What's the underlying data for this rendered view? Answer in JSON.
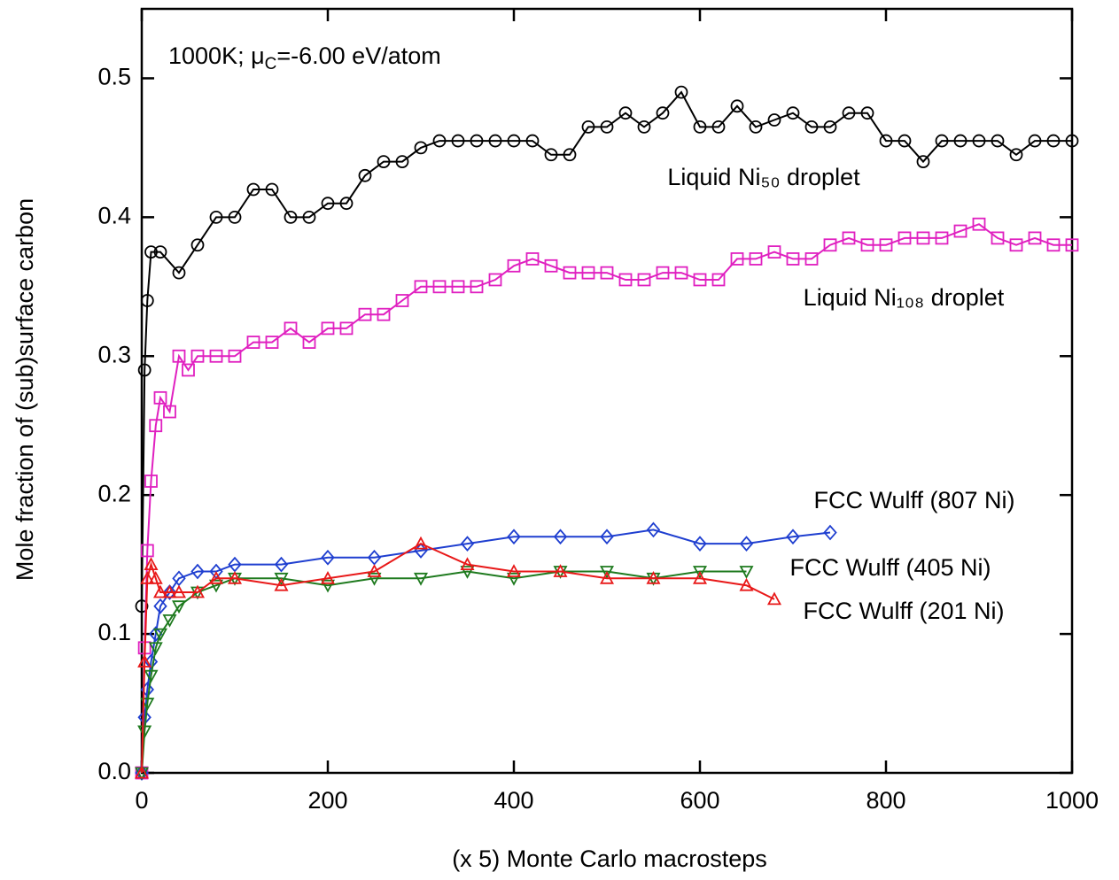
{
  "chart_data": {
    "type": "line",
    "annotation": [
      "1000K; μ",
      "C",
      "=-6.00 eV/atom"
    ],
    "xlabel": "(x 5) Monte Carlo macrosteps",
    "ylabel": "Mole fraction of (sub)surface carbon",
    "xlim": [
      0,
      1000
    ],
    "ylim": [
      0,
      0.55
    ],
    "xticks": [
      0,
      200,
      400,
      600,
      800,
      1000
    ],
    "yticks": [
      {
        "value": 0,
        "label": "0.0"
      },
      0.1,
      0.2,
      0.3,
      0.4,
      0.5
    ],
    "series": [
      {
        "name": "Liquid Ni₅₀ droplet",
        "color": "#000000",
        "marker": "circle",
        "x": [
          0,
          3,
          6,
          10,
          20,
          40,
          60,
          80,
          100,
          120,
          140,
          160,
          180,
          200,
          220,
          240,
          260,
          280,
          300,
          320,
          340,
          360,
          380,
          400,
          420,
          440,
          460,
          480,
          500,
          520,
          540,
          560,
          580,
          600,
          620,
          640,
          660,
          680,
          700,
          720,
          740,
          760,
          780,
          800,
          820,
          840,
          860,
          880,
          900,
          920,
          940,
          960,
          980,
          1000
        ],
        "values": [
          0.12,
          0.29,
          0.34,
          0.375,
          0.375,
          0.36,
          0.38,
          0.4,
          0.4,
          0.42,
          0.42,
          0.4,
          0.4,
          0.41,
          0.41,
          0.43,
          0.44,
          0.44,
          0.45,
          0.455,
          0.455,
          0.455,
          0.455,
          0.455,
          0.455,
          0.445,
          0.445,
          0.465,
          0.465,
          0.475,
          0.465,
          0.475,
          0.49,
          0.465,
          0.465,
          0.48,
          0.465,
          0.47,
          0.475,
          0.465,
          0.465,
          0.475,
          0.475,
          0.455,
          0.455,
          0.44,
          0.455,
          0.455,
          0.455,
          0.455,
          0.445,
          0.455,
          0.455,
          0.455
        ]
      },
      {
        "name": "Liquid Ni₁₀₈ droplet",
        "color": "#e020c0",
        "marker": "square",
        "x": [
          0,
          3,
          6,
          10,
          15,
          20,
          30,
          40,
          50,
          60,
          80,
          100,
          120,
          140,
          160,
          180,
          200,
          220,
          240,
          260,
          280,
          300,
          320,
          340,
          360,
          380,
          400,
          420,
          440,
          460,
          480,
          500,
          520,
          540,
          560,
          580,
          600,
          620,
          640,
          660,
          680,
          700,
          720,
          740,
          760,
          780,
          800,
          820,
          840,
          860,
          880,
          900,
          920,
          940,
          960,
          980,
          1000
        ],
        "values": [
          0,
          0.09,
          0.16,
          0.21,
          0.25,
          0.27,
          0.26,
          0.3,
          0.29,
          0.3,
          0.3,
          0.3,
          0.31,
          0.31,
          0.32,
          0.31,
          0.32,
          0.32,
          0.33,
          0.33,
          0.34,
          0.35,
          0.35,
          0.35,
          0.35,
          0.355,
          0.365,
          0.37,
          0.365,
          0.36,
          0.36,
          0.36,
          0.355,
          0.355,
          0.36,
          0.36,
          0.355,
          0.355,
          0.37,
          0.37,
          0.375,
          0.37,
          0.37,
          0.38,
          0.385,
          0.38,
          0.38,
          0.385,
          0.385,
          0.385,
          0.39,
          0.395,
          0.385,
          0.38,
          0.385,
          0.38,
          0.38
        ]
      },
      {
        "name": "FCC Wulff (807 Ni)",
        "color": "#1f3fd0",
        "marker": "diamond",
        "x": [
          0,
          3,
          6,
          10,
          15,
          20,
          30,
          40,
          60,
          80,
          100,
          150,
          200,
          250,
          300,
          350,
          400,
          450,
          500,
          550,
          600,
          650,
          700,
          740
        ],
        "values": [
          0,
          0.04,
          0.06,
          0.08,
          0.1,
          0.12,
          0.13,
          0.14,
          0.145,
          0.145,
          0.15,
          0.15,
          0.155,
          0.155,
          0.16,
          0.165,
          0.17,
          0.17,
          0.17,
          0.175,
          0.165,
          0.165,
          0.17,
          0.173
        ]
      },
      {
        "name": "FCC Wulff (405 Ni)",
        "color": "#1e7a1e",
        "marker": "triangle-down",
        "x": [
          0,
          3,
          6,
          10,
          15,
          20,
          30,
          40,
          60,
          80,
          100,
          150,
          200,
          250,
          300,
          350,
          400,
          450,
          500,
          550,
          600,
          650
        ],
        "values": [
          0,
          0.03,
          0.05,
          0.07,
          0.09,
          0.1,
          0.11,
          0.12,
          0.13,
          0.135,
          0.14,
          0.14,
          0.135,
          0.14,
          0.14,
          0.145,
          0.14,
          0.145,
          0.145,
          0.14,
          0.145,
          0.145
        ]
      },
      {
        "name": "FCC Wulff (201 Ni)",
        "color": "#e81818",
        "marker": "triangle-up",
        "x": [
          0,
          3,
          6,
          10,
          15,
          20,
          30,
          40,
          60,
          80,
          100,
          150,
          200,
          250,
          300,
          350,
          400,
          450,
          500,
          550,
          600,
          650,
          680
        ],
        "values": [
          0,
          0.08,
          0.14,
          0.15,
          0.14,
          0.13,
          0.13,
          0.13,
          0.13,
          0.14,
          0.14,
          0.135,
          0.14,
          0.145,
          0.165,
          0.15,
          0.145,
          0.145,
          0.14,
          0.14,
          0.14,
          0.135,
          0.125
        ]
      }
    ]
  }
}
